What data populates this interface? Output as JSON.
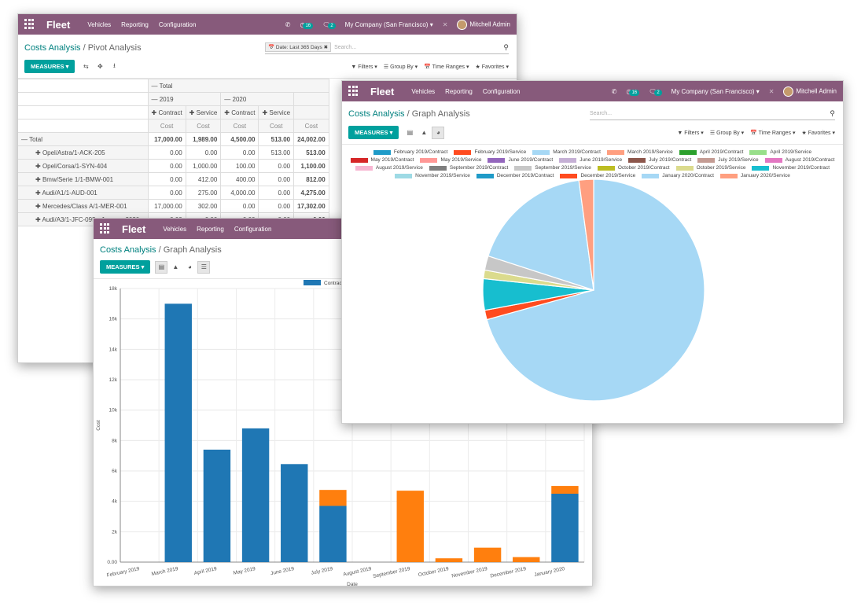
{
  "topbar": {
    "brand": "Fleet",
    "menus": [
      "Vehicles",
      "Reporting",
      "Configuration"
    ],
    "activity_count": "16",
    "message_count": "2",
    "company": "My Company (San Francisco)",
    "user": "Mitchell Admin",
    "colors": {
      "bar": "#875a7b",
      "accent": "#00a09d",
      "link": "#00817f"
    }
  },
  "pivot_window": {
    "breadcrumb_root": "Costs Analysis",
    "breadcrumb_current": "Pivot Analysis",
    "facet": "Date: Last 365 Days",
    "search_placeholder": "Search...",
    "measures_label": "MEASURES",
    "filters": [
      "Filters",
      "Group By",
      "Time Ranges",
      "Favorites"
    ],
    "col_header_total": "Total",
    "col_years": [
      "2019",
      "2020"
    ],
    "col_types": [
      "Contract",
      "Service",
      "Contract",
      "Service"
    ],
    "measure": "Cost",
    "total_row": {
      "label": "Total",
      "values": [
        "17,000.00",
        "1,989.00",
        "4,500.00",
        "513.00",
        "24,002.00"
      ]
    },
    "rows": [
      {
        "label": "Opel/Astra/1-ACK-205",
        "values": [
          "0.00",
          "0.00",
          "0.00",
          "513.00",
          "513.00"
        ]
      },
      {
        "label": "Opel/Corsa/1-SYN-404",
        "values": [
          "0.00",
          "1,000.00",
          "100.00",
          "0.00",
          "1,100.00"
        ]
      },
      {
        "label": "Bmw/Serie 1/1-BMW-001",
        "values": [
          "0.00",
          "412.00",
          "400.00",
          "0.00",
          "812.00"
        ]
      },
      {
        "label": "Audi/A1/1-AUD-001",
        "values": [
          "0.00",
          "275.00",
          "4,000.00",
          "0.00",
          "4,275.00"
        ]
      },
      {
        "label": "Mercedes/Class A/1-MER-001",
        "values": [
          "17,000.00",
          "302.00",
          "0.00",
          "0.00",
          "17,302.00"
        ]
      },
      {
        "label": "Audi/A3/1-JFC-095 • January 2020",
        "values": [
          "0.00",
          "0.00",
          "0.00",
          "0.00",
          "0.00"
        ]
      }
    ]
  },
  "bar_window": {
    "breadcrumb_root": "Costs Analysis",
    "breadcrumb_current": "Graph Analysis",
    "measures_label": "MEASURES",
    "legend_label": "Contract"
  },
  "pie_window": {
    "breadcrumb_root": "Costs Analysis",
    "breadcrumb_current": "Graph Analysis",
    "search_placeholder": "Search...",
    "measures_label": "MEASURES",
    "filters": [
      "Filters",
      "Group By",
      "Time Ranges",
      "Favorites"
    ]
  },
  "chart_data": [
    {
      "type": "bar",
      "stacked": true,
      "categories": [
        "February 2019",
        "March 2019",
        "April 2019",
        "May 2019",
        "June 2019",
        "July 2019",
        "August 2019",
        "September 2019",
        "October 2019",
        "November 2019",
        "December 2019",
        "January 2020"
      ],
      "series": [
        {
          "name": "Contract",
          "color": "#1f77b4",
          "values": [
            0,
            17000,
            7400,
            8800,
            6450,
            3700,
            0,
            0,
            0,
            0,
            0,
            4500
          ]
        },
        {
          "color": "#ff7f0e",
          "values": [
            0,
            0,
            0,
            0,
            0,
            1050,
            0,
            4700,
            250,
            950,
            330,
            513
          ]
        }
      ],
      "xlabel": "Date",
      "ylabel": "Cost",
      "ylim": [
        0,
        18000
      ],
      "yticks": [
        "0.00",
        "2k",
        "4k",
        "6k",
        "8k",
        "10k",
        "12k",
        "14k",
        "16k",
        "18k"
      ],
      "legend": "top-right",
      "grid": true
    },
    {
      "type": "pie",
      "legend": "top",
      "labels": [
        "February 2019/Contract",
        "February 2019/Service",
        "March 2019/Contract",
        "March 2019/Service",
        "April 2019/Contract",
        "April 2019/Service",
        "May 2019/Contract",
        "May 2019/Service",
        "June 2019/Contract",
        "June 2019/Service",
        "July 2019/Contract",
        "July 2019/Service",
        "August 2019/Contract",
        "August 2019/Service",
        "September 2019/Contract",
        "September 2019/Service",
        "October 2019/Contract",
        "October 2019/Service",
        "November 2019/Contract",
        "November 2019/Service",
        "December 2019/Contract",
        "December 2019/Service",
        "January 2020/Contract",
        "January 2020/Service"
      ],
      "colors": [
        "#1f9bc8",
        "#ff4b1f",
        "#a6d8f5",
        "#ff9f80",
        "#2ca02c",
        "#98df8a",
        "#d62728",
        "#ff9896",
        "#9467bd",
        "#c5b0d5",
        "#8c564b",
        "#c49c94",
        "#e377c2",
        "#f7b6d2",
        "#7f7f7f",
        "#c7c7c7",
        "#bcbd22",
        "#dbdb8d",
        "#17becf",
        "#9edae5",
        "#1f9bc8",
        "#ff4b1f",
        "#a6d8f5",
        "#ff9f80"
      ],
      "slices": [
        {
          "label": "March 2019/Contract",
          "value": 17000
        },
        {
          "label": "December 2019/Service",
          "value": 330
        },
        {
          "label": "November 2019/Contract",
          "value": 1100
        },
        {
          "label": "October 2019/Service",
          "value": 300
        },
        {
          "label": "September 2019/Service",
          "value": 500
        },
        {
          "label": "January 2020/Contract",
          "value": 4300
        },
        {
          "label": "January 2020/Service",
          "value": 513
        }
      ]
    }
  ]
}
